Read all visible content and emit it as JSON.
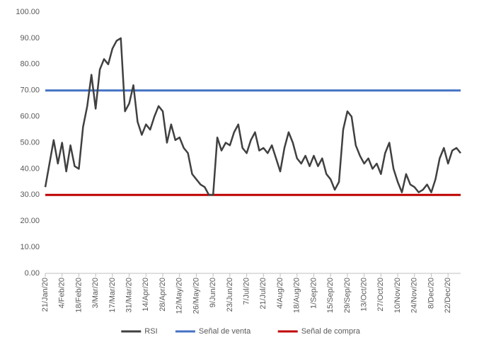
{
  "chart_data": {
    "type": "line",
    "categories": [
      "21/Jan/20",
      null,
      null,
      null,
      "4/Feb/20",
      null,
      null,
      null,
      "18/Feb/20",
      null,
      null,
      null,
      "3/Mar/20",
      null,
      null,
      null,
      "17/Mar/20",
      null,
      null,
      null,
      "31/Mar/20",
      null,
      null,
      null,
      "14/Apr/20",
      null,
      null,
      null,
      "28/Apr/20",
      null,
      null,
      null,
      "12/May/20",
      null,
      null,
      null,
      "26/May/20",
      null,
      null,
      null,
      "9/Jun/20",
      null,
      null,
      null,
      "23/Jun/20",
      null,
      null,
      null,
      "7/Jul/20",
      null,
      null,
      null,
      "21/Jul/20",
      null,
      null,
      null,
      "4/Aug/20",
      null,
      null,
      null,
      "18/Aug/20",
      null,
      null,
      null,
      "1/Sep/20",
      null,
      null,
      null,
      "15/Sep/20",
      null,
      null,
      null,
      "29/Sep/20",
      null,
      null,
      null,
      "13/Oct/20",
      null,
      null,
      null,
      "27/Oct/20",
      null,
      null,
      null,
      "10/Nov/20",
      null,
      null,
      null,
      "24/Nov/20",
      null,
      null,
      null,
      "8/Dec/20",
      null,
      null,
      null,
      "22/Dec/20",
      null,
      null,
      null
    ],
    "series": [
      {
        "name": "RSI",
        "color": "#404040",
        "values": [
          33,
          42,
          51,
          42,
          50,
          39,
          49,
          41,
          40,
          56,
          64,
          76,
          63,
          78,
          82,
          80,
          86,
          89,
          90,
          62,
          65,
          72,
          58,
          53,
          57,
          55,
          60,
          64,
          62,
          50,
          57,
          51,
          52,
          48,
          46,
          38,
          36,
          34,
          33,
          30,
          30,
          52,
          47,
          50,
          49,
          54,
          57,
          48,
          46,
          51,
          54,
          47,
          48,
          46,
          49,
          44,
          39,
          48,
          54,
          50,
          44,
          42,
          45,
          41,
          45,
          41,
          44,
          38,
          36,
          32,
          35,
          55,
          62,
          60,
          49,
          45,
          42,
          44,
          40,
          42,
          38,
          46,
          50,
          40,
          35,
          31,
          38,
          34,
          33,
          31,
          32,
          34,
          31,
          36,
          44,
          48,
          42,
          47,
          48,
          46
        ]
      },
      {
        "name": "Señal de venta",
        "color": "#4472c4",
        "values": [
          70,
          70,
          70,
          70,
          70,
          70,
          70,
          70,
          70,
          70,
          70,
          70,
          70,
          70,
          70,
          70,
          70,
          70,
          70,
          70,
          70,
          70,
          70,
          70,
          70,
          70,
          70,
          70,
          70,
          70,
          70,
          70,
          70,
          70,
          70,
          70,
          70,
          70,
          70,
          70,
          70,
          70,
          70,
          70,
          70,
          70,
          70,
          70,
          70,
          70,
          70,
          70,
          70,
          70,
          70,
          70,
          70,
          70,
          70,
          70,
          70,
          70,
          70,
          70,
          70,
          70,
          70,
          70,
          70,
          70,
          70,
          70,
          70,
          70,
          70,
          70,
          70,
          70,
          70,
          70,
          70,
          70,
          70,
          70,
          70,
          70,
          70,
          70,
          70,
          70,
          70,
          70,
          70,
          70,
          70,
          70,
          70,
          70,
          70,
          70
        ]
      },
      {
        "name": "Señal de compra",
        "color": "#c00000",
        "values": [
          30,
          30,
          30,
          30,
          30,
          30,
          30,
          30,
          30,
          30,
          30,
          30,
          30,
          30,
          30,
          30,
          30,
          30,
          30,
          30,
          30,
          30,
          30,
          30,
          30,
          30,
          30,
          30,
          30,
          30,
          30,
          30,
          30,
          30,
          30,
          30,
          30,
          30,
          30,
          30,
          30,
          30,
          30,
          30,
          30,
          30,
          30,
          30,
          30,
          30,
          30,
          30,
          30,
          30,
          30,
          30,
          30,
          30,
          30,
          30,
          30,
          30,
          30,
          30,
          30,
          30,
          30,
          30,
          30,
          30,
          30,
          30,
          30,
          30,
          30,
          30,
          30,
          30,
          30,
          30,
          30,
          30,
          30,
          30,
          30,
          30,
          30,
          30,
          30,
          30,
          30,
          30,
          30,
          30,
          30,
          30,
          30,
          30,
          30,
          30
        ]
      }
    ],
    "ylim": [
      0,
      100
    ],
    "yticks": [
      {
        "value": 0,
        "label": "0.00"
      },
      {
        "value": 10,
        "label": "10.00"
      },
      {
        "value": 20,
        "label": "20.00"
      },
      {
        "value": 30,
        "label": "30.00"
      },
      {
        "value": 40,
        "label": "40.00"
      },
      {
        "value": 50,
        "label": "50.00"
      },
      {
        "value": 60,
        "label": "60.00"
      },
      {
        "value": 70,
        "label": "70.00"
      },
      {
        "value": 80,
        "label": "80.00"
      },
      {
        "value": 90,
        "label": "90.00"
      },
      {
        "value": 100,
        "label": "100.00"
      }
    ],
    "grid": false,
    "legend": "bottom"
  }
}
